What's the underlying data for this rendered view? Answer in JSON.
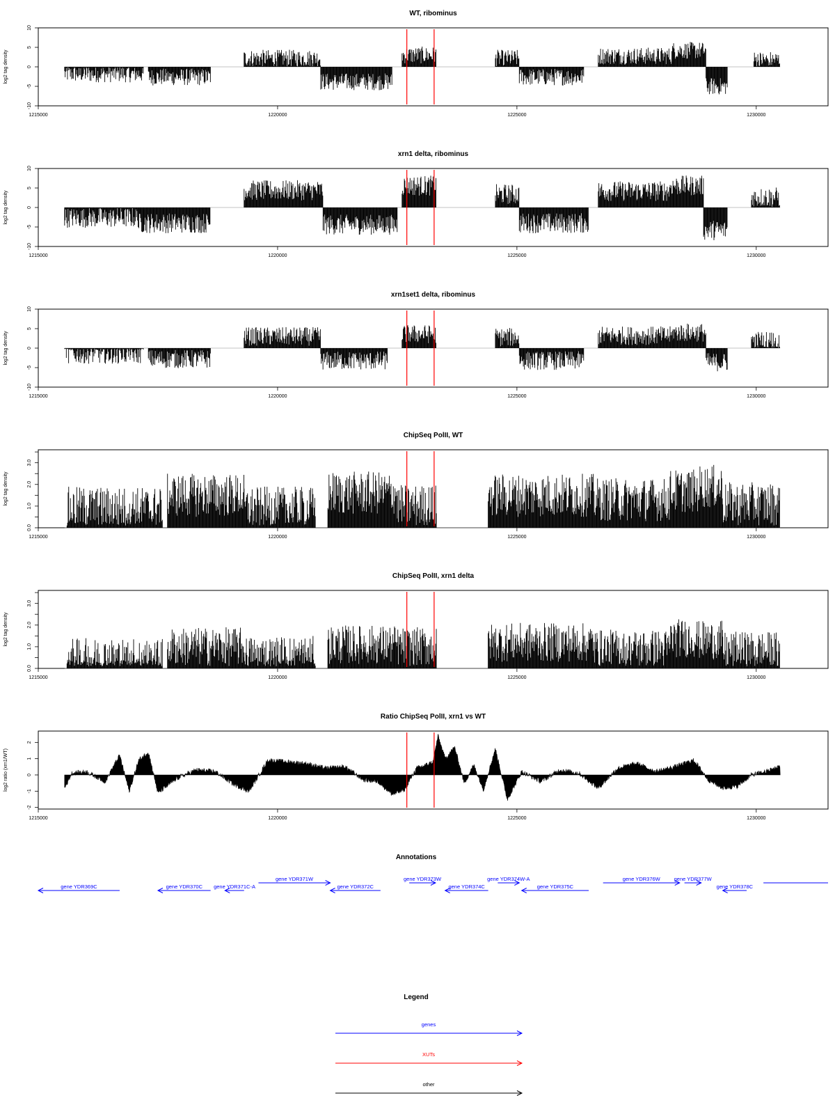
{
  "chart_data": [
    {
      "type": "bar",
      "title": "WT, ribominus",
      "ylabel": "log2 tag density",
      "xlim": [
        1215000,
        1231500
      ],
      "ylim": [
        -10,
        10
      ],
      "yticks": [
        "-10",
        "-5",
        "0",
        "5",
        "10"
      ],
      "xticks": [
        "1215000",
        "1220000",
        "1225000",
        "1230000"
      ],
      "markers_x": [
        1222700,
        1223270
      ],
      "track": {
        "baseline": 0,
        "spread": 2.2,
        "segments": [
          {
            "from": 1215550,
            "to": 1217200,
            "value": -1.8
          },
          {
            "from": 1217300,
            "to": 1218600,
            "value": -2.6
          },
          {
            "from": 1219300,
            "to": 1220900,
            "value": 2.2
          },
          {
            "from": 1220900,
            "to": 1222400,
            "value": -3.8
          },
          {
            "from": 1222600,
            "to": 1223320,
            "value": 3.0
          },
          {
            "from": 1224550,
            "to": 1225050,
            "value": 2.2
          },
          {
            "from": 1225050,
            "to": 1226400,
            "value": -2.6
          },
          {
            "from": 1226700,
            "to": 1228250,
            "value": 2.8
          },
          {
            "from": 1228250,
            "to": 1228950,
            "value": 4.2
          },
          {
            "from": 1228950,
            "to": 1229400,
            "value": -5.0
          },
          {
            "from": 1229950,
            "to": 1230500,
            "value": 1.8
          }
        ]
      }
    },
    {
      "type": "bar",
      "title": "xrn1 delta, ribominus",
      "ylabel": "log2 tag density",
      "xlim": [
        1215000,
        1231500
      ],
      "ylim": [
        -10,
        10
      ],
      "yticks": [
        "-10",
        "-5",
        "0",
        "5",
        "10"
      ],
      "xticks": [
        "1215000",
        "1220000",
        "1225000",
        "1230000"
      ],
      "markers_x": [
        1222700,
        1223270
      ],
      "track": {
        "baseline": 0,
        "spread": 2.6,
        "segments": [
          {
            "from": 1215550,
            "to": 1217100,
            "value": -2.6
          },
          {
            "from": 1217100,
            "to": 1218600,
            "value": -4.0
          },
          {
            "from": 1219300,
            "to": 1220950,
            "value": 4.4
          },
          {
            "from": 1220950,
            "to": 1222500,
            "value": -4.4
          },
          {
            "from": 1222600,
            "to": 1223320,
            "value": 5.6
          },
          {
            "from": 1224550,
            "to": 1225050,
            "value": 3.4
          },
          {
            "from": 1225050,
            "to": 1226500,
            "value": -4.0
          },
          {
            "from": 1226700,
            "to": 1228200,
            "value": 4.2
          },
          {
            "from": 1228200,
            "to": 1228900,
            "value": 5.6
          },
          {
            "from": 1228900,
            "to": 1229400,
            "value": -5.8
          },
          {
            "from": 1229900,
            "to": 1230500,
            "value": 2.6
          }
        ]
      }
    },
    {
      "type": "bar",
      "title": "xrn1set1 delta, ribominus",
      "ylabel": "log2 tag density",
      "xlim": [
        1215000,
        1231500
      ],
      "ylim": [
        -10,
        10
      ],
      "yticks": [
        "-10",
        "-5",
        "0",
        "5",
        "10"
      ],
      "xticks": [
        "1215000",
        "1220000",
        "1225000",
        "1230000"
      ],
      "markers_x": [
        1222700,
        1223270
      ],
      "track": {
        "baseline": 0,
        "spread": 2.4,
        "segments": [
          {
            "from": 1215550,
            "to": 1217200,
            "value": -1.6
          },
          {
            "from": 1217300,
            "to": 1218600,
            "value": -2.8
          },
          {
            "from": 1219300,
            "to": 1220900,
            "value": 3.0
          },
          {
            "from": 1220900,
            "to": 1222300,
            "value": -3.2
          },
          {
            "from": 1222600,
            "to": 1223320,
            "value": 3.6
          },
          {
            "from": 1224550,
            "to": 1225050,
            "value": 2.8
          },
          {
            "from": 1225050,
            "to": 1226400,
            "value": -3.2
          },
          {
            "from": 1226700,
            "to": 1228250,
            "value": 3.2
          },
          {
            "from": 1228250,
            "to": 1228950,
            "value": 4.0
          },
          {
            "from": 1228950,
            "to": 1229400,
            "value": -3.6
          },
          {
            "from": 1229900,
            "to": 1230500,
            "value": 2.0
          }
        ]
      }
    },
    {
      "type": "bar",
      "title": "ChipSeq PolII, WT",
      "ylabel": "log2 tag density",
      "xlim": [
        1215000,
        1231500
      ],
      "ylim": [
        0,
        3.6
      ],
      "yticks": [
        "0.0",
        "1.0",
        "2.0",
        "3.0"
      ],
      "yticks_minor": [
        "0.5",
        "1.5",
        "2.5",
        "3.5"
      ],
      "xticks": [
        "1215000",
        "1220000",
        "1225000",
        "1230000"
      ],
      "markers_x": [
        1222700,
        1223270
      ],
      "track": {
        "baseline": 0,
        "spread": 1.0,
        "segments": [
          {
            "from": 1215600,
            "to": 1217600,
            "value": 0.9
          },
          {
            "from": 1217700,
            "to": 1219300,
            "value": 1.5
          },
          {
            "from": 1219300,
            "to": 1220800,
            "value": 0.9
          },
          {
            "from": 1221050,
            "to": 1222500,
            "value": 1.6
          },
          {
            "from": 1222500,
            "to": 1223320,
            "value": 1.0
          },
          {
            "from": 1224400,
            "to": 1226600,
            "value": 1.5
          },
          {
            "from": 1226600,
            "to": 1228200,
            "value": 1.3
          },
          {
            "from": 1228200,
            "to": 1228800,
            "value": 1.7
          },
          {
            "from": 1228800,
            "to": 1229300,
            "value": 1.9
          },
          {
            "from": 1229300,
            "to": 1230500,
            "value": 1.1
          }
        ]
      }
    },
    {
      "type": "bar",
      "title": "ChipSeq PolII, xrn1 delta",
      "ylabel": "log2 tag density",
      "xlim": [
        1215000,
        1231500
      ],
      "ylim": [
        0,
        3.6
      ],
      "yticks": [
        "0.0",
        "1.0",
        "2.0",
        "3.0"
      ],
      "yticks_minor": [
        "0.5",
        "1.5",
        "2.5",
        "3.5"
      ],
      "xticks": [
        "1215000",
        "1220000",
        "1225000",
        "1230000"
      ],
      "markers_x": [
        1222700,
        1223270
      ],
      "track": {
        "baseline": 0,
        "spread": 0.9,
        "segments": [
          {
            "from": 1215600,
            "to": 1217600,
            "value": 0.5
          },
          {
            "from": 1217700,
            "to": 1219300,
            "value": 1.0
          },
          {
            "from": 1219300,
            "to": 1220800,
            "value": 0.6
          },
          {
            "from": 1221050,
            "to": 1222500,
            "value": 1.1
          },
          {
            "from": 1222500,
            "to": 1223320,
            "value": 1.0
          },
          {
            "from": 1224400,
            "to": 1226600,
            "value": 1.2
          },
          {
            "from": 1226600,
            "to": 1228200,
            "value": 0.9
          },
          {
            "from": 1228200,
            "to": 1228800,
            "value": 1.4
          },
          {
            "from": 1228800,
            "to": 1229300,
            "value": 1.3
          },
          {
            "from": 1229300,
            "to": 1230500,
            "value": 0.8
          }
        ]
      }
    },
    {
      "type": "area",
      "title": "Ratio ChipSeq PolII, xrn1 vs WT",
      "ylabel": "log2 ratio (xrn1/WT)",
      "xlim": [
        1215000,
        1231500
      ],
      "ylim": [
        -2.1,
        2.7
      ],
      "yticks": [
        "-2",
        "-1",
        "0",
        "1",
        "2"
      ],
      "xticks": [
        "1215000",
        "1220000",
        "1225000",
        "1230000"
      ],
      "markers_x": [
        1222700,
        1223270
      ],
      "x": [
        1215550,
        1215700,
        1216000,
        1216400,
        1216700,
        1216900,
        1217100,
        1217300,
        1217500,
        1217900,
        1218300,
        1218700,
        1219100,
        1219400,
        1219800,
        1220200,
        1220600,
        1221000,
        1221400,
        1221800,
        1222100,
        1222400,
        1222650,
        1222900,
        1223100,
        1223250,
        1223350,
        1223500,
        1223700,
        1223900,
        1224100,
        1224300,
        1224550,
        1224800,
        1225100,
        1225500,
        1225900,
        1226300,
        1226700,
        1227100,
        1227500,
        1227900,
        1228300,
        1228700,
        1229000,
        1229300,
        1229600,
        1229900,
        1230200,
        1230400,
        1230500
      ],
      "y": [
        -0.8,
        0.1,
        0.2,
        -0.4,
        1.2,
        -1.0,
        0.9,
        1.4,
        -1.1,
        -0.2,
        0.3,
        0.2,
        -0.6,
        -1.0,
        0.9,
        0.8,
        0.7,
        0.4,
        0.5,
        -0.3,
        -0.4,
        -1.2,
        -0.9,
        0.4,
        0.6,
        0.8,
        2.4,
        1.0,
        1.7,
        -0.5,
        0.6,
        -0.9,
        1.6,
        -1.5,
        0.2,
        -0.4,
        0.3,
        0.1,
        -0.8,
        0.4,
        0.7,
        0.2,
        0.5,
        0.9,
        -0.3,
        -0.8,
        -0.7,
        0.0,
        0.2,
        0.4,
        0.6
      ],
      "spread": 0.15
    }
  ],
  "annotations": {
    "title": "Annotations",
    "genes": [
      {
        "label": "gene YDR369C",
        "from": 1216700,
        "to": 1215000,
        "strand": "-",
        "row": 1
      },
      {
        "label": "gene YDR370C",
        "from": 1218600,
        "to": 1217500,
        "strand": "-",
        "row": 1
      },
      {
        "label": "gene YDR371C-A",
        "from": 1219300,
        "to": 1218900,
        "strand": "-",
        "row": 1
      },
      {
        "label": "gene YDR371W",
        "from": 1219600,
        "to": 1221100,
        "strand": "+",
        "row": 0
      },
      {
        "label": "gene YDR372C",
        "from": 1222150,
        "to": 1221100,
        "strand": "-",
        "row": 1
      },
      {
        "label": "gene YDR373W",
        "from": 1222750,
        "to": 1223300,
        "strand": "+",
        "row": 0
      },
      {
        "label": "gene YDR374C",
        "from": 1224400,
        "to": 1223500,
        "strand": "-",
        "row": 1
      },
      {
        "label": "gene YDR374W-A",
        "from": 1224600,
        "to": 1225050,
        "strand": "+",
        "row": 0
      },
      {
        "label": "gene YDR375C",
        "from": 1226500,
        "to": 1225100,
        "strand": "-",
        "row": 1
      },
      {
        "label": "gene YDR376W",
        "from": 1226800,
        "to": 1228400,
        "strand": "+",
        "row": 0
      },
      {
        "label": "gene YDR377W",
        "from": 1228500,
        "to": 1228850,
        "strand": "+",
        "row": 0
      },
      {
        "label": "gene YDR378C",
        "from": 1229800,
        "to": 1229300,
        "strand": "-",
        "row": 1
      },
      {
        "label": "",
        "from": 1230150,
        "to": 1231500,
        "strand": "+",
        "row": 0
      }
    ]
  },
  "legend": {
    "title": "Legend",
    "items": [
      {
        "label": "genes",
        "color": "#0000ff"
      },
      {
        "label": "XUTs",
        "color": "#ff0000"
      },
      {
        "label": "other",
        "color": "#000000"
      }
    ]
  },
  "colors": {
    "marker": "#ff0000",
    "bars": "#000000",
    "gene": "#0000ff"
  }
}
